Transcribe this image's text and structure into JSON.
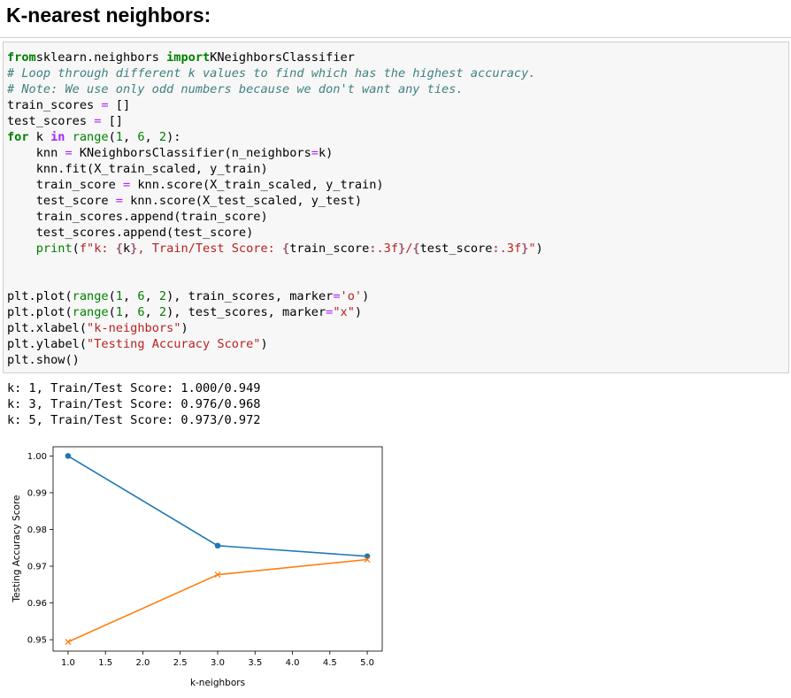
{
  "heading": "K-nearest neighbors:",
  "code_lines": [
    [
      [
        "kw",
        "from"
      ],
      [
        "",
        "sklearn.neighbors "
      ],
      [
        "kw",
        "import"
      ],
      [
        "",
        "KNeighborsClassifier"
      ]
    ],
    [
      [
        "cm",
        "# Loop through different k values to find which has the highest accuracy."
      ]
    ],
    [
      [
        "cm",
        "# Note: We use only odd numbers because we don't want any ties."
      ]
    ],
    [
      [
        "",
        "train_scores "
      ],
      [
        "op",
        "="
      ],
      [
        "",
        " []"
      ]
    ],
    [
      [
        "",
        "test_scores "
      ],
      [
        "op",
        "="
      ],
      [
        "",
        " []"
      ]
    ],
    [
      [
        "kw",
        "for"
      ],
      [
        "",
        " k "
      ],
      [
        "ow",
        "in"
      ],
      [
        "",
        " "
      ],
      [
        "bi",
        "range"
      ],
      [
        "",
        "("
      ],
      [
        "nm",
        "1"
      ],
      [
        "",
        ", "
      ],
      [
        "nm",
        "6"
      ],
      [
        "",
        ", "
      ],
      [
        "nm",
        "2"
      ],
      [
        "",
        "):"
      ]
    ],
    [
      [
        "",
        "    knn "
      ],
      [
        "op",
        "="
      ],
      [
        "",
        " KNeighborsClassifier(n_neighbors"
      ],
      [
        "op",
        "="
      ],
      [
        "",
        "k)"
      ]
    ],
    [
      [
        "",
        "    knn.fit(X_train_scaled, y_train)"
      ]
    ],
    [
      [
        "",
        "    train_score "
      ],
      [
        "op",
        "="
      ],
      [
        "",
        " knn.score(X_train_scaled, y_train)"
      ]
    ],
    [
      [
        "",
        "    test_score "
      ],
      [
        "op",
        "="
      ],
      [
        "",
        " knn.score(X_test_scaled, y_test)"
      ]
    ],
    [
      [
        "",
        "    train_scores.append(train_score)"
      ]
    ],
    [
      [
        "",
        "    test_scores.append(test_score)"
      ]
    ],
    [
      [
        "",
        "    "
      ],
      [
        "bi",
        "print"
      ],
      [
        "",
        "("
      ],
      [
        "sa",
        "f"
      ],
      [
        "st",
        "\"k: "
      ],
      [
        "si",
        "{"
      ],
      [
        "",
        "k"
      ],
      [
        "si",
        "}"
      ],
      [
        "st",
        ", Train/Test Score: "
      ],
      [
        "si",
        "{"
      ],
      [
        "",
        "train_score"
      ],
      [
        "si",
        ":"
      ],
      [
        "st",
        ".3f"
      ],
      [
        "si",
        "}"
      ],
      [
        "st",
        "/"
      ],
      [
        "si",
        "{"
      ],
      [
        "",
        "test_score"
      ],
      [
        "si",
        ":"
      ],
      [
        "st",
        ".3f"
      ],
      [
        "si",
        "}"
      ],
      [
        "st",
        "\""
      ],
      [
        "",
        ")"
      ]
    ],
    [
      [
        "",
        ""
      ]
    ],
    [
      [
        "",
        ""
      ]
    ],
    [
      [
        "",
        "plt.plot("
      ],
      [
        "bi",
        "range"
      ],
      [
        "",
        "("
      ],
      [
        "nm",
        "1"
      ],
      [
        "",
        ", "
      ],
      [
        "nm",
        "6"
      ],
      [
        "",
        ", "
      ],
      [
        "nm",
        "2"
      ],
      [
        "",
        "), train_scores, marker"
      ],
      [
        "op",
        "="
      ],
      [
        "st",
        "'o'"
      ],
      [
        "",
        ")"
      ]
    ],
    [
      [
        "",
        "plt.plot("
      ],
      [
        "bi",
        "range"
      ],
      [
        "",
        "("
      ],
      [
        "nm",
        "1"
      ],
      [
        "",
        ", "
      ],
      [
        "nm",
        "6"
      ],
      [
        "",
        ", "
      ],
      [
        "nm",
        "2"
      ],
      [
        "",
        "), test_scores, marker"
      ],
      [
        "op",
        "="
      ],
      [
        "st",
        "\"x\""
      ],
      [
        "",
        ")"
      ]
    ],
    [
      [
        "",
        "plt.xlabel("
      ],
      [
        "st",
        "\"k-neighbors\""
      ],
      [
        "",
        ")"
      ]
    ],
    [
      [
        "",
        "plt.ylabel("
      ],
      [
        "st",
        "\"Testing Accuracy Score\""
      ],
      [
        "",
        ")"
      ]
    ],
    [
      [
        "",
        "plt.show()"
      ]
    ]
  ],
  "output_lines": [
    "k: 1, Train/Test Score: 1.000/0.949",
    "k: 3, Train/Test Score: 0.976/0.968",
    "k: 5, Train/Test Score: 0.973/0.972"
  ],
  "chart_data": {
    "type": "line",
    "x": [
      1,
      3,
      5
    ],
    "series": [
      {
        "values": [
          1.0,
          0.9756,
          0.9727
        ],
        "marker": "o",
        "color": "#1f77b4"
      },
      {
        "values": [
          0.9494,
          0.9677,
          0.9718
        ],
        "marker": "x",
        "color": "#ff7f0e"
      }
    ],
    "xlabel": "k-neighbors",
    "ylabel": "Testing Accuracy Score",
    "xlim": [
      0.8,
      5.2
    ],
    "ylim": [
      0.9469,
      1.0025
    ],
    "xticks": [
      "1.0",
      "1.5",
      "2.0",
      "2.5",
      "3.0",
      "3.5",
      "4.0",
      "4.5",
      "5.0"
    ],
    "yticks": [
      "0.95",
      "0.96",
      "0.97",
      "0.98",
      "0.99",
      "1.00"
    ],
    "grid": false
  }
}
